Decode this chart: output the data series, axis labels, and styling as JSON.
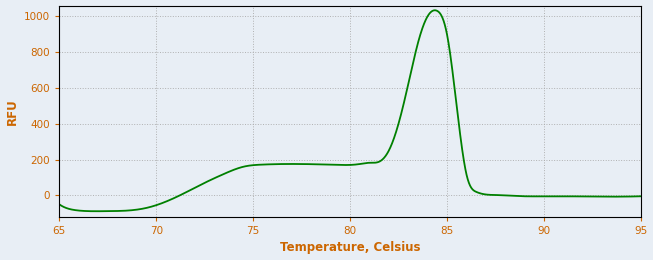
{
  "title": "",
  "xlabel": "Temperature, Celsius",
  "ylabel": "RFU",
  "line_color": "#008000",
  "line_width": 1.3,
  "bg_color": "#e8eef5",
  "plot_bg_color": "#e8eef5",
  "xlim": [
    65,
    95
  ],
  "ylim": [
    -120,
    1060
  ],
  "xticks": [
    65,
    70,
    75,
    80,
    85,
    90,
    95
  ],
  "yticks": [
    0,
    200,
    400,
    600,
    800,
    1000
  ],
  "grid_color": "#aaaaaa",
  "xlabel_color": "#cc6600",
  "ylabel_color": "#cc6600",
  "tick_color": "#cc6600",
  "spine_color": "#000000",
  "x_knots": [
    65,
    65.3,
    65.8,
    66.5,
    67.5,
    68.5,
    69.5,
    70.5,
    71.5,
    72.5,
    73.5,
    74.5,
    75.5,
    76.5,
    77.5,
    78.5,
    79.5,
    80.0,
    80.5,
    81.0,
    81.5,
    82.0,
    82.5,
    83.0,
    83.5,
    84.0,
    84.5,
    85.0,
    85.5,
    86.0,
    86.5,
    87.0,
    87.5,
    88.0,
    89.0,
    90.0,
    91.0,
    95.0
  ],
  "y_knots": [
    -50,
    -68,
    -82,
    -88,
    -88,
    -85,
    -70,
    -35,
    15,
    70,
    120,
    160,
    172,
    175,
    175,
    173,
    170,
    170,
    175,
    182,
    188,
    250,
    400,
    620,
    850,
    1000,
    1030,
    900,
    500,
    120,
    20,
    5,
    2,
    0,
    -5,
    -5,
    -5,
    -5
  ]
}
